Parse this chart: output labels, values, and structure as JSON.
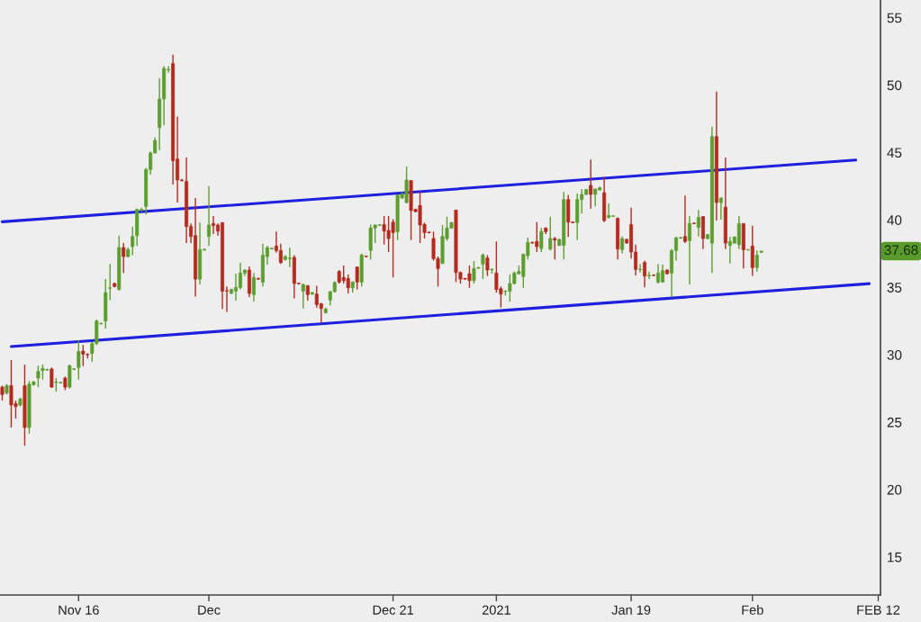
{
  "chart_data": {
    "type": "candlestick",
    "categories": [
      null,
      null,
      null,
      null,
      null,
      null,
      null,
      null,
      null,
      null,
      null,
      null,
      null,
      null,
      null,
      null,
      null,
      "Nov 16",
      null,
      null,
      null,
      null,
      null,
      null,
      null,
      null,
      null,
      null,
      null,
      null,
      null,
      null,
      null,
      null,
      null,
      null,
      null,
      null,
      null,
      null,
      null,
      null,
      null,
      null,
      null,
      null,
      "Dec",
      null,
      null,
      null,
      null,
      null,
      null,
      null,
      null,
      null,
      null,
      null,
      null,
      null,
      null,
      null,
      null,
      null,
      null,
      null,
      null,
      null,
      null,
      null,
      null,
      null,
      null,
      null,
      null,
      null,
      null,
      null,
      null,
      null,
      null,
      null,
      null,
      null,
      null,
      null,
      null,
      "Dec 21",
      null,
      null,
      null,
      null,
      null,
      null,
      null,
      null,
      null,
      null,
      null,
      null,
      null,
      null,
      null,
      null,
      null,
      null,
      null,
      null,
      null,
      null,
      "2021",
      null,
      null,
      null,
      null,
      null,
      null,
      null,
      null,
      null,
      null,
      null,
      null,
      null,
      null,
      null,
      null,
      null,
      null,
      null,
      null,
      null,
      null,
      null,
      null,
      null,
      null,
      null,
      null,
      null,
      "Jan 19",
      null,
      null,
      null,
      null,
      null,
      null,
      null,
      null,
      null,
      null,
      null,
      null,
      null,
      null,
      null,
      null,
      null,
      null,
      null,
      null,
      null,
      null,
      null,
      null,
      null,
      null,
      "Feb",
      null,
      null,
      null,
      null,
      null,
      null,
      null,
      null,
      null,
      null,
      null,
      null,
      null,
      null,
      null,
      null,
      null,
      null,
      null,
      null,
      null,
      null,
      null,
      null,
      null,
      null,
      null,
      "FEB 12"
    ],
    "ylim": [
      12.18,
      56.31
    ],
    "yticks": [
      15,
      20,
      25,
      30,
      35,
      40,
      45,
      50,
      55
    ],
    "series": [
      {
        "type": "line",
        "color": "#1f1fe0",
        "values": [
          39.86,
          null,
          null,
          null,
          null,
          null,
          null,
          null,
          null,
          null,
          null,
          null,
          null,
          null,
          null,
          null,
          null,
          null,
          null,
          null,
          null,
          null,
          null,
          null,
          null,
          null,
          null,
          null,
          null,
          null,
          null,
          null,
          null,
          null,
          null,
          null,
          null,
          null,
          null,
          null,
          null,
          null,
          null,
          null,
          null,
          null,
          null,
          null,
          null,
          null,
          null,
          null,
          null,
          null,
          null,
          null,
          null,
          null,
          null,
          null,
          null,
          null,
          null,
          null,
          null,
          null,
          null,
          null,
          null,
          null,
          null,
          null,
          null,
          null,
          null,
          null,
          null,
          null,
          null,
          null,
          null,
          null,
          null,
          null,
          null,
          null,
          null,
          null,
          null,
          null,
          null,
          null,
          null,
          null,
          null,
          null,
          null,
          null,
          null,
          null,
          null,
          null,
          null,
          null,
          null,
          null,
          null,
          null,
          null,
          null,
          null,
          null,
          null,
          null,
          null,
          null,
          null,
          null,
          null,
          null,
          null,
          null,
          null,
          null,
          null,
          null,
          null,
          null,
          null,
          null,
          null,
          null,
          null,
          null,
          null,
          null,
          null,
          null,
          null,
          null,
          null,
          null,
          null,
          null,
          null,
          null,
          null,
          null,
          null,
          null,
          null,
          null,
          null,
          null,
          null,
          null,
          null,
          null,
          null,
          null,
          null,
          null,
          null,
          null,
          null,
          null,
          null,
          null,
          null,
          null,
          null,
          null,
          null,
          null,
          null,
          null,
          null,
          null,
          null,
          null,
          null,
          null,
          null,
          null,
          null,
          null,
          null,
          null,
          null,
          null,
          44.44,
          null,
          null,
          null,
          null,
          null
        ]
      },
      {
        "type": "line",
        "color": "#1f1fe0",
        "values": [
          null,
          null,
          30.61,
          null,
          null,
          null,
          null,
          null,
          null,
          null,
          null,
          null,
          null,
          null,
          null,
          null,
          null,
          null,
          null,
          null,
          null,
          null,
          null,
          null,
          null,
          null,
          null,
          null,
          null,
          null,
          null,
          null,
          null,
          null,
          null,
          null,
          null,
          null,
          null,
          null,
          null,
          null,
          null,
          null,
          null,
          null,
          null,
          null,
          null,
          null,
          null,
          null,
          null,
          null,
          null,
          null,
          null,
          null,
          null,
          null,
          null,
          null,
          null,
          null,
          null,
          null,
          null,
          null,
          null,
          null,
          null,
          null,
          null,
          null,
          null,
          null,
          null,
          null,
          null,
          null,
          null,
          null,
          null,
          null,
          null,
          null,
          null,
          null,
          null,
          null,
          null,
          null,
          null,
          null,
          null,
          null,
          null,
          null,
          null,
          null,
          null,
          null,
          null,
          null,
          null,
          null,
          null,
          null,
          null,
          null,
          null,
          null,
          null,
          null,
          null,
          null,
          null,
          null,
          null,
          null,
          null,
          null,
          null,
          null,
          null,
          null,
          null,
          null,
          null,
          null,
          null,
          null,
          null,
          null,
          null,
          null,
          null,
          null,
          null,
          null,
          null,
          null,
          null,
          null,
          null,
          null,
          null,
          null,
          null,
          null,
          null,
          null,
          null,
          null,
          null,
          null,
          null,
          null,
          null,
          null,
          null,
          null,
          null,
          null,
          null,
          null,
          null,
          null,
          null,
          null,
          null,
          null,
          null,
          null,
          null,
          null,
          null,
          null,
          null,
          null,
          null,
          null,
          null,
          null,
          null,
          null,
          null,
          null,
          null,
          null,
          null,
          null,
          null,
          35.27,
          null,
          null
        ]
      },
      {
        "ohlc": [
          [
            27.6,
            27.71,
            26.6,
            27.05
          ],
          [
            27.16,
            27.82,
            27.05,
            27.71
          ],
          [
            27.71,
            29.61,
            24.6,
            26.27
          ],
          [
            26.38,
            26.6,
            25.27,
            26.16
          ],
          [
            26.27,
            26.82,
            26.16,
            26.71
          ],
          [
            27.71,
            29.27,
            23.26,
            24.6
          ],
          [
            24.6,
            28.05,
            24.15,
            27.82
          ],
          [
            27.78,
            28.05,
            27.71,
            27.98
          ],
          [
            28.27,
            29.19,
            27.6,
            28.76
          ],
          [
            28.83,
            29.27,
            28.16,
            28.98
          ],
          [
            28.87,
            28.96,
            28.81,
            28.89
          ],
          [
            28.94,
            29.05,
            27.56,
            27.6
          ],
          [
            27.94,
            28.27,
            27.27,
            27.96
          ],
          [
            27.92,
            28.0,
            27.86,
            27.94
          ],
          [
            28.27,
            28.38,
            27.38,
            27.6
          ],
          [
            27.6,
            29.27,
            27.49,
            29.19
          ],
          [
            28.92,
            29.0,
            28.86,
            28.94
          ],
          [
            29.05,
            31.05,
            28.16,
            30.23
          ],
          [
            30.27,
            30.72,
            29.16,
            30.05
          ],
          [
            30.02,
            30.1,
            29.72,
            30.0
          ],
          [
            30.1,
            30.94,
            29.49,
            30.83
          ],
          [
            30.83,
            32.61,
            30.72,
            32.5
          ],
          [
            32.3,
            32.38,
            32.24,
            32.32
          ],
          [
            32.5,
            35.61,
            31.94,
            34.61
          ],
          [
            34.93,
            36.73,
            34.06,
            34.95
          ],
          [
            35.28,
            35.35,
            35.0,
            35.06
          ],
          [
            34.84,
            38.84,
            34.77,
            37.95
          ],
          [
            37.95,
            38.28,
            36.06,
            37.28
          ],
          [
            37.28,
            37.95,
            37.22,
            37.8
          ],
          [
            38.02,
            39.51,
            37.39,
            38.77
          ],
          [
            38.84,
            40.84,
            38.06,
            40.78
          ],
          [
            40.74,
            40.9,
            40.6,
            40.78
          ],
          [
            41.0,
            43.85,
            40.4,
            43.74
          ],
          [
            43.74,
            45.07,
            43.36,
            44.96
          ],
          [
            44.96,
            46.12,
            44.92,
            45.89
          ],
          [
            46.85,
            50.52,
            45.18,
            48.97
          ],
          [
            48.97,
            51.41,
            47.03,
            51.24
          ],
          [
            51.13,
            51.41,
            50.92,
            51.15
          ],
          [
            51.59,
            52.26,
            42.62,
            44.4
          ],
          [
            44.51,
            47.67,
            41.29,
            42.96
          ],
          [
            42.96,
            43.02,
            42.85,
            42.91
          ],
          [
            42.85,
            44.62,
            38.28,
            39.51
          ],
          [
            39.51,
            39.73,
            38.28,
            38.77
          ],
          [
            38.84,
            41.62,
            34.32,
            35.61
          ],
          [
            35.61,
            39.8,
            35.21,
            37.8
          ],
          [
            37.78,
            37.88,
            37.7,
            37.82
          ],
          [
            38.77,
            42.51,
            38.06,
            39.62
          ],
          [
            39.73,
            40.29,
            38.95,
            39.58
          ],
          [
            39.62,
            39.73,
            38.84,
            39.17
          ],
          [
            39.8,
            39.8,
            33.39,
            34.72
          ],
          [
            34.75,
            35.06,
            33.17,
            34.72
          ],
          [
            34.55,
            34.9,
            34.5,
            34.84
          ],
          [
            34.72,
            36.02,
            34.01,
            34.99
          ],
          [
            34.99,
            36.84,
            34.84,
            36.06
          ],
          [
            36.06,
            36.33,
            35.84,
            36.28
          ],
          [
            36.28,
            36.55,
            34.28,
            34.55
          ],
          [
            34.46,
            36.06,
            33.95,
            35.73
          ],
          [
            35.66,
            35.72,
            35.55,
            35.61
          ],
          [
            35.39,
            38.24,
            35.06,
            37.39
          ],
          [
            37.28,
            38.06,
            36.68,
            37.95
          ],
          [
            37.86,
            37.95,
            37.8,
            37.88
          ],
          [
            38.06,
            39.13,
            37.57,
            37.73
          ],
          [
            37.73,
            38.24,
            36.73,
            36.84
          ],
          [
            37.06,
            37.39,
            36.99,
            37.28
          ],
          [
            37.13,
            37.95,
            36.5,
            37.17
          ],
          [
            37.22,
            37.39,
            34.17,
            35.28
          ],
          [
            35.3,
            35.35,
            35.2,
            35.28
          ],
          [
            34.72,
            35.28,
            33.43,
            35.21
          ],
          [
            35.12,
            35.17,
            34.01,
            34.46
          ],
          [
            34.5,
            34.66,
            34.44,
            34.61
          ],
          [
            34.5,
            35.12,
            33.5,
            33.72
          ],
          [
            33.79,
            33.83,
            32.39,
            33.43
          ],
          [
            33.12,
            33.5,
            33.05,
            33.39
          ],
          [
            34.06,
            34.72,
            33.66,
            34.68
          ],
          [
            34.68,
            35.44,
            34.61,
            35.35
          ],
          [
            36.17,
            36.28,
            35.28,
            35.39
          ],
          [
            35.73,
            36.62,
            35.28,
            35.5
          ],
          [
            35.66,
            35.95,
            34.55,
            34.96
          ],
          [
            34.96,
            35.44,
            34.61,
            35.39
          ],
          [
            36.5,
            36.55,
            34.84,
            35.39
          ],
          [
            35.39,
            37.5,
            35.06,
            37.39
          ],
          [
            37.3,
            37.35,
            37.22,
            37.28
          ],
          [
            37.73,
            39.66,
            37.06,
            39.4
          ],
          [
            39.4,
            39.66,
            38.29,
            39.62
          ],
          [
            39.6,
            39.68,
            39.55,
            39.62
          ],
          [
            39.66,
            40.29,
            38.17,
            39.17
          ],
          [
            39.22,
            40.29,
            37.62,
            38.62
          ],
          [
            39.84,
            40.06,
            35.73,
            39.06
          ],
          [
            39.13,
            41.85,
            38.51,
            41.85
          ],
          [
            41.62,
            42.07,
            41.58,
            41.89
          ],
          [
            41.29,
            43.96,
            41.22,
            42.96
          ],
          [
            42.91,
            42.96,
            38.51,
            40.69
          ],
          [
            40.78,
            40.84,
            40.55,
            40.62
          ],
          [
            41.07,
            42.11,
            38.29,
            39.62
          ],
          [
            39.66,
            39.8,
            38.62,
            39.06
          ],
          [
            39.08,
            39.14,
            39.0,
            39.06
          ],
          [
            38.62,
            39.13,
            36.99,
            37.13
          ],
          [
            37.13,
            37.28,
            35.06,
            36.39
          ],
          [
            36.77,
            39.62,
            36.73,
            38.77
          ],
          [
            38.62,
            40.24,
            38.46,
            39.4
          ],
          [
            39.4,
            39.84,
            39.35,
            39.8
          ],
          [
            40.73,
            40.73,
            35.39,
            36.1
          ],
          [
            36.1,
            36.17,
            35.28,
            35.61
          ],
          [
            35.66,
            35.7,
            35.55,
            35.61
          ],
          [
            36.01,
            36.62,
            34.96,
            35.5
          ],
          [
            35.5,
            36.95,
            35.28,
            36.39
          ],
          [
            36.42,
            36.52,
            36.36,
            36.46
          ],
          [
            36.73,
            37.5,
            35.61,
            37.39
          ],
          [
            37.17,
            37.39,
            35.84,
            36.28
          ],
          [
            36.31,
            36.39,
            36.01,
            36.33
          ],
          [
            36.06,
            38.4,
            34.61,
            34.84
          ],
          [
            34.9,
            35.06,
            33.5,
            34.5
          ],
          [
            34.7,
            34.77,
            34.39,
            34.72
          ],
          [
            34.72,
            35.95,
            33.95,
            35.28
          ],
          [
            35.28,
            36.17,
            35.21,
            36.06
          ],
          [
            36.01,
            36.62,
            35.95,
            36.17
          ],
          [
            35.8,
            37.5,
            34.96,
            37.44
          ],
          [
            37.35,
            38.69,
            37.06,
            38.33
          ],
          [
            38.33,
            38.38,
            38.24,
            38.29
          ],
          [
            38.4,
            39.84,
            37.62,
            38.02
          ],
          [
            37.88,
            39.4,
            37.62,
            39.13
          ],
          [
            39.4,
            39.44,
            38.95,
            39.13
          ],
          [
            37.84,
            40.24,
            37.73,
            38.62
          ],
          [
            38.62,
            38.73,
            37.06,
            38.51
          ],
          [
            38.11,
            38.62,
            38.06,
            38.55
          ],
          [
            38.11,
            42.07,
            37.06,
            41.51
          ],
          [
            41.51,
            41.85,
            38.73,
            39.84
          ],
          [
            39.84,
            39.88,
            39.75,
            39.8
          ],
          [
            39.8,
            41.96,
            38.51,
            41.51
          ],
          [
            41.51,
            42.29,
            40.47,
            41.89
          ],
          [
            41.89,
            42.29,
            41.85,
            42.25
          ],
          [
            42.56,
            44.47,
            40.84,
            41.89
          ],
          [
            41.89,
            42.33,
            41.0,
            42.29
          ],
          [
            42.22,
            42.45,
            42.18,
            42.4
          ],
          [
            42.02,
            43.18,
            39.84,
            39.95
          ],
          [
            40.18,
            41.22,
            40.11,
            40.33
          ],
          [
            40.27,
            40.33,
            40.22,
            40.29
          ],
          [
            40.11,
            40.18,
            37.06,
            37.84
          ],
          [
            37.8,
            38.77,
            37.51,
            38.62
          ],
          [
            38.55,
            38.62,
            38.24,
            38.29
          ],
          [
            39.66,
            40.91,
            37.13,
            37.62
          ],
          [
            37.62,
            38.17,
            35.88,
            36.33
          ],
          [
            36.31,
            36.73,
            36.1,
            36.33
          ],
          [
            36.84,
            36.99,
            34.99,
            35.84
          ],
          [
            35.86,
            36.17,
            35.61,
            35.88
          ],
          [
            35.9,
            35.96,
            35.82,
            35.88
          ],
          [
            35.39,
            36.73,
            35.28,
            36.06
          ],
          [
            35.39,
            36.68,
            35.35,
            36.24
          ],
          [
            36.28,
            36.33,
            35.95,
            36.01
          ],
          [
            36.06,
            37.84,
            34.28,
            37.73
          ],
          [
            37.73,
            38.73,
            36.99,
            38.68
          ],
          [
            38.66,
            38.75,
            38.6,
            38.68
          ],
          [
            38.77,
            41.8,
            38.28,
            38.4
          ],
          [
            38.46,
            40.29,
            35.21,
            39.73
          ],
          [
            39.75,
            39.8,
            39.68,
            39.73
          ],
          [
            39.44,
            40.73,
            38.77,
            40.18
          ],
          [
            40.24,
            40.29,
            37.84,
            38.62
          ],
          [
            38.62,
            38.95,
            38.55,
            38.91
          ],
          [
            38.28,
            46.92,
            36.06,
            46.18
          ],
          [
            46.18,
            49.52,
            39.95,
            41.29
          ],
          [
            41.29,
            41.67,
            40.02,
            41.62
          ],
          [
            40.95,
            44.63,
            37.84,
            38.28
          ],
          [
            38.11,
            38.73,
            36.77,
            38.4
          ],
          [
            38.28,
            38.77,
            38.24,
            38.73
          ],
          [
            38.17,
            40.29,
            37.84,
            39.73
          ],
          [
            39.73,
            39.73,
            36.39,
            37.79
          ],
          [
            37.77,
            37.84,
            37.73,
            37.79
          ],
          [
            38.06,
            39.57,
            35.84,
            36.46
          ],
          [
            36.46,
            37.73,
            36.17,
            37.39
          ],
          [
            37.6,
            37.72,
            37.55,
            37.68
          ],
          null,
          null,
          null,
          null,
          null,
          null,
          null,
          null,
          null,
          null,
          null,
          null,
          null,
          null,
          null,
          null,
          null,
          null,
          null,
          null,
          null,
          null,
          null,
          null,
          null,
          null
        ],
        "colors": [
          "#b32a1f",
          "#5c9e2e",
          "#b32a1f",
          "#b32a1f",
          "#5c9e2e",
          "#b32a1f",
          "#5c9e2e",
          "#5c9e2e",
          "#5c9e2e",
          "#5c9e2e",
          "#5c9e2e",
          "#b32a1f",
          "#5c9e2e",
          "#5c9e2e",
          "#b32a1f",
          "#5c9e2e",
          "#5c9e2e",
          "#5c9e2e",
          "#b32a1f",
          "#b32a1f",
          "#5c9e2e",
          "#5c9e2e",
          "#5c9e2e",
          "#5c9e2e",
          "#5c9e2e",
          "#b32a1f",
          "#5c9e2e",
          "#b32a1f",
          "#5c9e2e",
          "#5c9e2e",
          "#5c9e2e",
          "#5c9e2e",
          "#5c9e2e",
          "#5c9e2e",
          "#5c9e2e",
          "#5c9e2e",
          "#5c9e2e",
          "#5c9e2e",
          "#b32a1f",
          "#b32a1f",
          "#b32a1f",
          "#b32a1f",
          "#b32a1f",
          "#b32a1f",
          "#5c9e2e",
          "#5c9e2e",
          "#5c9e2e",
          "#b32a1f",
          "#b32a1f",
          "#b32a1f",
          "#b32a1f",
          "#5c9e2e",
          "#5c9e2e",
          "#5c9e2e",
          "#5c9e2e",
          "#b32a1f",
          "#5c9e2e",
          "#b32a1f",
          "#5c9e2e",
          "#5c9e2e",
          "#5c9e2e",
          "#b32a1f",
          "#b32a1f",
          "#5c9e2e",
          "#5c9e2e",
          "#b32a1f",
          "#b32a1f",
          "#5c9e2e",
          "#b32a1f",
          "#5c9e2e",
          "#b32a1f",
          "#b32a1f",
          "#5c9e2e",
          "#5c9e2e",
          "#5c9e2e",
          "#b32a1f",
          "#b32a1f",
          "#b32a1f",
          "#5c9e2e",
          "#b32a1f",
          "#5c9e2e",
          "#b32a1f",
          "#5c9e2e",
          "#5c9e2e",
          "#5c9e2e",
          "#b32a1f",
          "#b32a1f",
          "#b32a1f",
          "#5c9e2e",
          "#5c9e2e",
          "#5c9e2e",
          "#b32a1f",
          "#b32a1f",
          "#b32a1f",
          "#b32a1f",
          "#b32a1f",
          "#b32a1f",
          "#b32a1f",
          "#5c9e2e",
          "#5c9e2e",
          "#5c9e2e",
          "#b32a1f",
          "#b32a1f",
          "#b32a1f",
          "#b32a1f",
          "#5c9e2e",
          "#5c9e2e",
          "#5c9e2e",
          "#b32a1f",
          "#5c9e2e",
          "#b32a1f",
          "#b32a1f",
          "#5c9e2e",
          "#5c9e2e",
          "#5c9e2e",
          "#5c9e2e",
          "#5c9e2e",
          "#5c9e2e",
          "#b32a1f",
          "#b32a1f",
          "#5c9e2e",
          "#b32a1f",
          "#5c9e2e",
          "#b32a1f",
          "#5c9e2e",
          "#5c9e2e",
          "#b32a1f",
          "#b32a1f",
          "#5c9e2e",
          "#5c9e2e",
          "#5c9e2e",
          "#b32a1f",
          "#5c9e2e",
          "#5c9e2e",
          "#b32a1f",
          "#5c9e2e",
          "#5c9e2e",
          "#b32a1f",
          "#5c9e2e",
          "#b32a1f",
          "#b32a1f",
          "#b32a1f",
          "#5c9e2e",
          "#b32a1f",
          "#5c9e2e",
          "#b32a1f",
          "#5c9e2e",
          "#5c9e2e",
          "#b32a1f",
          "#5c9e2e",
          "#5c9e2e",
          "#5c9e2e",
          "#b32a1f",
          "#5c9e2e",
          "#b32a1f",
          "#5c9e2e",
          "#b32a1f",
          "#5c9e2e",
          "#5c9e2e",
          "#b32a1f",
          "#5c9e2e",
          "#b32a1f",
          "#5c9e2e",
          "#5c9e2e",
          "#5c9e2e",
          "#b32a1f",
          "#5c9e2e",
          "#b32a1f",
          "#5c9e2e",
          "#5c9e2e",
          null,
          null,
          null,
          null,
          null,
          null,
          null,
          null,
          null,
          null,
          null,
          null,
          null,
          null,
          null,
          null,
          null,
          null,
          null,
          null,
          null,
          null,
          null,
          null,
          null,
          null
        ]
      }
    ],
    "annotations": [
      "37.68"
    ]
  }
}
